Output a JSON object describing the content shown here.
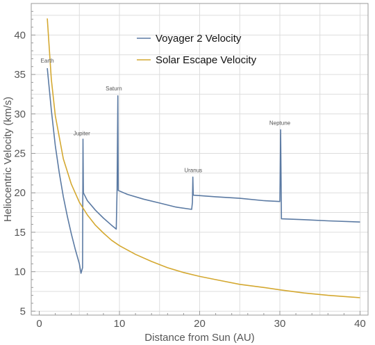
{
  "chart_data": {
    "type": "line",
    "xlabel": "Distance from Sun (AU)",
    "ylabel": "Heliocentric Velocity (km/s)",
    "xlim": [
      -1,
      41
    ],
    "ylim": [
      4.5,
      44
    ],
    "x_ticks": [
      0,
      10,
      20,
      30,
      40
    ],
    "y_ticks": [
      5,
      10,
      15,
      20,
      25,
      30,
      35,
      40
    ],
    "grid": true,
    "legend_position": "top-center",
    "series": [
      {
        "name": "Voyager 2 Velocity",
        "color": "#5b7aa3",
        "points": [
          [
            1.0,
            35.8
          ],
          [
            1.5,
            30.5
          ],
          [
            2.0,
            26.0
          ],
          [
            2.5,
            22.5
          ],
          [
            3.0,
            19.5
          ],
          [
            3.5,
            17.0
          ],
          [
            4.0,
            14.8
          ],
          [
            4.5,
            12.8
          ],
          [
            5.0,
            11.0
          ],
          [
            5.2,
            9.8
          ],
          [
            5.4,
            10.5
          ],
          [
            5.45,
            26.8
          ],
          [
            5.5,
            20.0
          ],
          [
            6.0,
            19.0
          ],
          [
            7.0,
            17.8
          ],
          [
            8.0,
            16.8
          ],
          [
            9.0,
            15.9
          ],
          [
            9.6,
            15.4
          ],
          [
            9.7,
            20.5
          ],
          [
            9.8,
            32.3
          ],
          [
            9.85,
            20.3
          ],
          [
            11.0,
            19.8
          ],
          [
            13.0,
            19.2
          ],
          [
            15.0,
            18.7
          ],
          [
            17.0,
            18.2
          ],
          [
            19.0,
            17.9
          ],
          [
            19.1,
            18.8
          ],
          [
            19.15,
            22.0
          ],
          [
            19.2,
            19.7
          ],
          [
            22.0,
            19.5
          ],
          [
            25.0,
            19.3
          ],
          [
            28.0,
            19.0
          ],
          [
            30.0,
            18.9
          ],
          [
            30.1,
            28.0
          ],
          [
            30.2,
            16.7
          ],
          [
            33.0,
            16.6
          ],
          [
            36.0,
            16.45
          ],
          [
            40.0,
            16.3
          ]
        ]
      },
      {
        "name": "Solar Escape Velocity",
        "color": "#d4a830",
        "points": [
          [
            1.0,
            42.1
          ],
          [
            1.5,
            34.4
          ],
          [
            2.0,
            29.8
          ],
          [
            3.0,
            24.3
          ],
          [
            4.0,
            21.1
          ],
          [
            5.0,
            18.8
          ],
          [
            6.0,
            17.2
          ],
          [
            7.0,
            15.9
          ],
          [
            8.0,
            14.9
          ],
          [
            9.0,
            14.0
          ],
          [
            10.0,
            13.3
          ],
          [
            12.0,
            12.2
          ],
          [
            14.0,
            11.3
          ],
          [
            16.0,
            10.5
          ],
          [
            18.0,
            9.9
          ],
          [
            20.0,
            9.4
          ],
          [
            22.0,
            9.0
          ],
          [
            25.0,
            8.4
          ],
          [
            28.0,
            8.0
          ],
          [
            30.0,
            7.7
          ],
          [
            33.0,
            7.3
          ],
          [
            36.0,
            7.0
          ],
          [
            40.0,
            6.7
          ]
        ]
      }
    ],
    "annotations": [
      {
        "text": "Earth",
        "x": 1.0,
        "y": 36.5
      },
      {
        "text": "Jupiter",
        "x": 5.3,
        "y": 27.3
      },
      {
        "text": "Saturn",
        "x": 9.3,
        "y": 33.0
      },
      {
        "text": "Uranus",
        "x": 19.2,
        "y": 22.6
      },
      {
        "text": "Neptune",
        "x": 30.0,
        "y": 28.6
      }
    ]
  }
}
